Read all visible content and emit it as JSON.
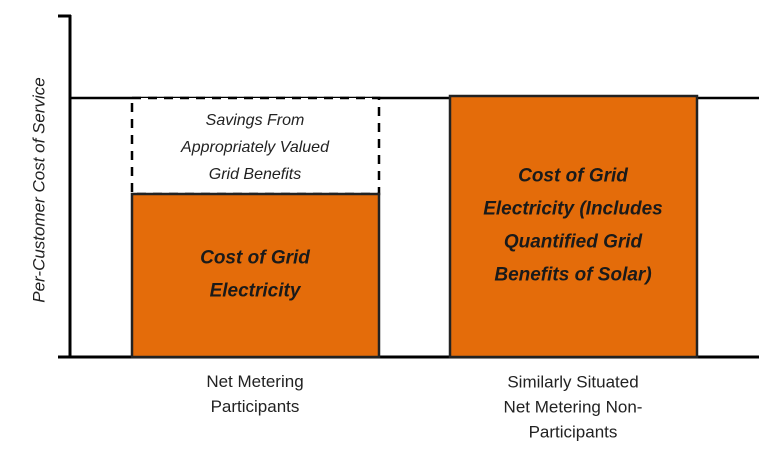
{
  "y_axis_label": "Per-Customer Cost of Service",
  "columns": [
    {
      "category": [
        "Net Metering",
        "Participants"
      ],
      "savings_label": [
        "Savings From",
        "Appropriately Valued",
        "Grid Benefits"
      ],
      "bar_label": [
        "Cost of Grid",
        "Electricity"
      ]
    },
    {
      "category": [
        "Similarly Situated",
        "Net Metering Non-",
        "Participants"
      ],
      "bar_label": [
        "Cost of Grid",
        "Electricity (Includes",
        "Quantified Grid",
        "Benefits of Solar)"
      ]
    }
  ]
}
